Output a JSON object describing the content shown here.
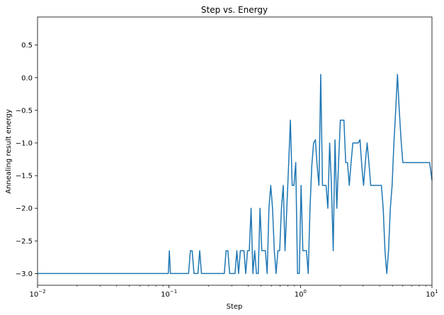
{
  "chart_data": {
    "type": "line",
    "title": "Step vs. Energy",
    "xlabel": "Step",
    "ylabel": "Annealing result energy",
    "xscale": "log",
    "xlim": [
      0.01,
      10
    ],
    "ylim": [
      -3.18,
      0.93
    ],
    "grid": false,
    "line_color": "#1f77b4",
    "yticks": [
      0.5,
      0.0,
      -0.5,
      -1.0,
      -1.5,
      -2.0,
      -2.5,
      -3.0
    ],
    "ytick_labels": [
      "0.5",
      "0.0",
      "−0.5",
      "−1.0",
      "−1.5",
      "−2.0",
      "−2.5",
      "−3.0"
    ],
    "xticks": [
      {
        "value": 0.01,
        "base": "10",
        "exp": "−2"
      },
      {
        "value": 0.1,
        "base": "10",
        "exp": "−1"
      },
      {
        "value": 1,
        "base": "10",
        "exp": "0"
      },
      {
        "value": 10,
        "base": "10",
        "exp": "1"
      }
    ],
    "x": [
      0.01,
      0.0988,
      0.1006,
      0.1025,
      0.1409,
      0.1454,
      0.15,
      0.1548,
      0.1659,
      0.1712,
      0.1766,
      0.1822,
      0.2634,
      0.2717,
      0.2803,
      0.2892,
      0.3178,
      0.3279,
      0.3383,
      0.349,
      0.3716,
      0.3834,
      0.3956,
      0.4081,
      0.4211,
      0.4344,
      0.4482,
      0.4625,
      0.4772,
      0.4923,
      0.508,
      0.5241,
      0.5408,
      0.558,
      0.5757,
      0.594,
      0.6129,
      0.6323,
      0.6524,
      0.6731,
      0.6945,
      0.7165,
      0.7393,
      0.7628,
      0.787,
      0.812,
      0.8378,
      0.8644,
      0.8918,
      0.9202,
      0.9494,
      0.9795,
      1.0106,
      1.0427,
      1.0758,
      1.11,
      1.1452,
      1.1816,
      1.2191,
      1.2578,
      1.2978,
      1.339,
      1.3815,
      1.4254,
      1.4706,
      1.5173,
      1.5655,
      1.6152,
      1.6665,
      1.7194,
      1.774,
      1.8304,
      1.8885,
      1.9484,
      2.0103,
      2.0742,
      2.14,
      2.208,
      2.2781,
      2.3504,
      2.4251,
      2.502,
      2.5815,
      2.6635,
      2.748,
      2.8353,
      2.9253,
      3.0182,
      3.1141,
      3.2129,
      3.315,
      3.4202,
      3.5289,
      3.6409,
      3.7565,
      3.8758,
      3.9989,
      4.1259,
      4.2569,
      4.392,
      4.5315,
      4.6754,
      4.8239,
      4.9771,
      5.1351,
      5.2982,
      5.4664,
      5.64,
      5.8191,
      6.0039,
      6.1946,
      6.3913,
      6.5942,
      6.8037,
      7.0197,
      7.2426,
      7.4726,
      7.7099,
      7.9547,
      8.2073,
      8.468,
      8.7369,
      9.0143,
      9.3006,
      9.5959,
      9.9006,
      10
    ],
    "y": [
      -3.0,
      -3.0,
      -2.65,
      -3.0,
      -3.0,
      -2.65,
      -2.65,
      -3.0,
      -3.0,
      -2.65,
      -3.0,
      -3.0,
      -3.0,
      -2.65,
      -2.65,
      -3.0,
      -3.0,
      -2.65,
      -3.0,
      -2.65,
      -2.65,
      -3.0,
      -2.65,
      -2.65,
      -2.0,
      -3.0,
      -2.65,
      -3.0,
      -3.0,
      -2.0,
      -2.65,
      -2.65,
      -2.65,
      -3.0,
      -2.0,
      -1.65,
      -2.0,
      -2.65,
      -3.0,
      -2.65,
      -2.65,
      -2.0,
      -1.65,
      -2.65,
      -2.0,
      -1.35,
      -0.65,
      -1.65,
      -1.65,
      -1.3,
      -3.0,
      -3.0,
      -1.65,
      -2.65,
      -2.65,
      -2.65,
      -3.0,
      -2.0,
      -1.35,
      -1.0,
      -0.95,
      -1.35,
      -1.65,
      0.05,
      -1.65,
      -1.65,
      -1.65,
      -2.0,
      -1.0,
      -1.65,
      -2.65,
      -0.95,
      -2.0,
      -1.3,
      -0.65,
      -0.65,
      -0.65,
      -1.3,
      -1.3,
      -1.65,
      -1.3,
      -1.0,
      -1.0,
      -1.0,
      -1.0,
      -0.95,
      -1.35,
      -1.65,
      -1.3,
      -1.0,
      -1.3,
      -1.65,
      -1.65,
      -1.65,
      -1.65,
      -1.65,
      -1.65,
      -1.65,
      -2.0,
      -2.65,
      -3.0,
      -2.65,
      -2.0,
      -1.65,
      -1.0,
      -0.5,
      0.05,
      -0.5,
      -0.95,
      -1.3,
      -1.3,
      -1.3,
      -1.3,
      -1.3,
      -1.3,
      -1.3,
      -1.3,
      -1.3,
      -1.3,
      -1.3,
      -1.3,
      -1.3,
      -1.3,
      -1.3,
      -1.3,
      -1.5,
      -1.57
    ]
  }
}
